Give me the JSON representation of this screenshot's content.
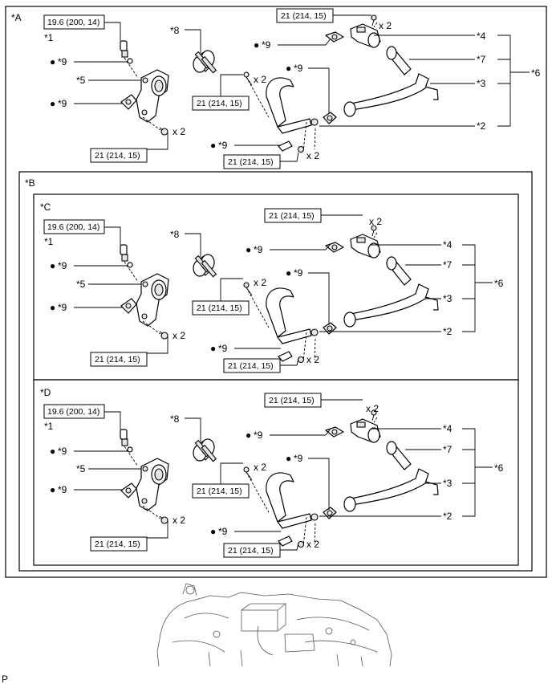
{
  "sections": {
    "A": "*A",
    "B": "*B",
    "C": "*C",
    "D": "*D"
  },
  "labels": {
    "p1": "*1",
    "p2": "*2",
    "p3": "*3",
    "p4": "*4",
    "p5": "*5",
    "p6": "*6",
    "p7": "*7",
    "p8": "*8",
    "p9": "*9"
  },
  "torque": {
    "sensor": "19.6 (200, 14)",
    "bolt": "21 (214, 15)"
  },
  "qty": "x 2",
  "bullet": "●",
  "footer": "P"
}
